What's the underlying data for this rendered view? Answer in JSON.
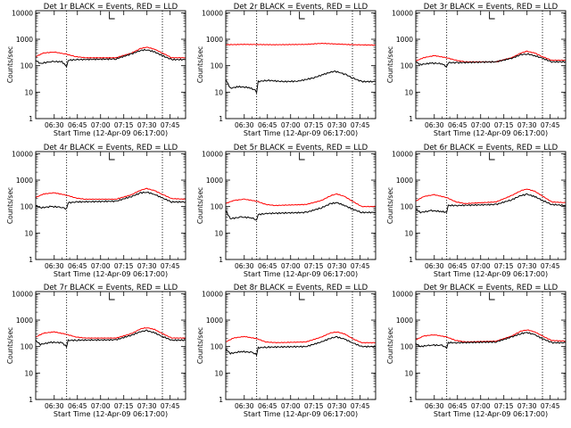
{
  "chart_data": [
    {
      "type": "line",
      "title": "Det 1r BLACK = Events, RED = LLD",
      "xlabel": "Start Time (12-Apr-09 06:17:00)",
      "ylabel": "Counts/sec",
      "yscale": "log",
      "ylim": [
        1,
        12000
      ],
      "xlim": [
        378,
        475
      ],
      "x_tick_labels": [
        "06:30",
        "06:45",
        "07:00",
        "07:15",
        "07:30",
        "07:45"
      ],
      "y_tick_labels": [
        "1",
        "10",
        "100",
        "1000",
        "10000"
      ],
      "vlines": [
        398,
        460
      ],
      "series": [
        {
          "color": "#ff0000",
          "x": [
            378,
            383,
            390,
            398,
            404,
            410,
            430,
            440,
            446,
            450,
            455,
            460,
            466,
            475
          ],
          "y": [
            220,
            300,
            330,
            270,
            220,
            200,
            200,
            300,
            450,
            500,
            420,
            300,
            200,
            200
          ]
        },
        {
          "color": "#000000",
          "x": [
            378,
            381,
            388,
            395,
            398,
            399,
            405,
            430,
            440,
            446,
            450,
            455,
            460,
            466,
            475
          ],
          "y": [
            160,
            120,
            145,
            140,
            95,
            160,
            170,
            180,
            280,
            380,
            400,
            330,
            240,
            170,
            170
          ]
        }
      ]
    },
    {
      "type": "line",
      "title": "Det 2r BLACK = Events, RED = LLD",
      "xlabel": "Start Time (12-Apr-09 06:17:00)",
      "ylabel": "Counts/sec",
      "yscale": "log",
      "ylim": [
        1,
        12000
      ],
      "xlim": [
        378,
        475
      ],
      "x_tick_labels": [
        "06:30",
        "06:45",
        "07:00",
        "07:15",
        "07:30",
        "07:45"
      ],
      "y_tick_labels": [
        "1",
        "10",
        "100",
        "1000",
        "10000"
      ],
      "vlines": [
        398,
        460
      ],
      "series": [
        {
          "color": "#ff0000",
          "x": [
            378,
            390,
            410,
            430,
            440,
            450,
            460,
            475
          ],
          "y": [
            620,
            640,
            620,
            640,
            700,
            660,
            620,
            600
          ]
        },
        {
          "color": "#000000",
          "x": [
            378,
            381,
            386,
            393,
            397,
            398,
            399,
            405,
            415,
            425,
            435,
            442,
            448,
            452,
            456,
            460,
            466,
            475
          ],
          "y": [
            30,
            14,
            16,
            15,
            12,
            10,
            25,
            28,
            25,
            26,
            35,
            48,
            62,
            55,
            45,
            35,
            25,
            25
          ]
        }
      ]
    },
    {
      "type": "line",
      "title": "Det 3r BLACK = Events, RED = LLD",
      "xlabel": "Start Time (12-Apr-09 06:17:00)",
      "ylabel": "Counts/sec",
      "yscale": "log",
      "ylim": [
        1,
        12000
      ],
      "xlim": [
        378,
        475
      ],
      "x_tick_labels": [
        "06:30",
        "06:45",
        "07:00",
        "07:15",
        "07:30",
        "07:45"
      ],
      "y_tick_labels": [
        "1",
        "10",
        "100",
        "1000",
        "10000"
      ],
      "vlines": [
        398,
        460
      ],
      "series": [
        {
          "color": "#ff0000",
          "x": [
            378,
            383,
            390,
            398,
            404,
            410,
            430,
            440,
            446,
            450,
            455,
            460,
            466,
            475
          ],
          "y": [
            150,
            200,
            240,
            200,
            160,
            140,
            140,
            200,
            300,
            350,
            300,
            220,
            160,
            160
          ]
        },
        {
          "color": "#000000",
          "x": [
            378,
            381,
            388,
            395,
            398,
            399,
            405,
            430,
            440,
            446,
            450,
            455,
            460,
            466,
            475
          ],
          "y": [
            140,
            110,
            125,
            120,
            90,
            130,
            130,
            140,
            190,
            260,
            280,
            240,
            190,
            140,
            140
          ]
        }
      ]
    },
    {
      "type": "line",
      "title": "Det 4r BLACK = Events, RED = LLD",
      "xlabel": "Start Time (12-Apr-09 06:17:00)",
      "ylabel": "Counts/sec",
      "yscale": "log",
      "ylim": [
        1,
        12000
      ],
      "xlim": [
        378,
        475
      ],
      "x_tick_labels": [
        "06:30",
        "06:45",
        "07:00",
        "07:15",
        "07:30",
        "07:45"
      ],
      "y_tick_labels": [
        "1",
        "10",
        "100",
        "1000",
        "10000"
      ],
      "vlines": [
        398,
        460
      ],
      "series": [
        {
          "color": "#ff0000",
          "x": [
            378,
            383,
            390,
            398,
            404,
            410,
            430,
            440,
            446,
            450,
            455,
            460,
            466,
            475
          ],
          "y": [
            220,
            300,
            330,
            270,
            210,
            190,
            190,
            280,
            420,
            480,
            400,
            290,
            200,
            190
          ]
        },
        {
          "color": "#000000",
          "x": [
            378,
            381,
            388,
            395,
            398,
            399,
            405,
            430,
            440,
            446,
            450,
            455,
            460,
            466,
            475
          ],
          "y": [
            110,
            90,
            100,
            95,
            80,
            140,
            150,
            160,
            240,
            330,
            350,
            290,
            210,
            150,
            150
          ]
        }
      ]
    },
    {
      "type": "line",
      "title": "Det 5r BLACK = Events, RED = LLD",
      "xlabel": "Start Time (12-Apr-09 06:17:00)",
      "ylabel": "Counts/sec",
      "yscale": "log",
      "ylim": [
        1,
        12000
      ],
      "xlim": [
        378,
        475
      ],
      "x_tick_labels": [
        "06:30",
        "06:45",
        "07:00",
        "07:15",
        "07:30",
        "07:45"
      ],
      "y_tick_labels": [
        "1",
        "10",
        "100",
        "1000",
        "10000"
      ],
      "vlines": [
        398,
        460
      ],
      "series": [
        {
          "color": "#ff0000",
          "x": [
            378,
            383,
            390,
            398,
            404,
            410,
            430,
            440,
            446,
            450,
            455,
            460,
            466,
            475
          ],
          "y": [
            130,
            170,
            190,
            160,
            120,
            110,
            120,
            170,
            260,
            300,
            240,
            160,
            100,
            100
          ]
        },
        {
          "color": "#000000",
          "x": [
            378,
            381,
            388,
            395,
            398,
            399,
            405,
            430,
            440,
            446,
            450,
            455,
            460,
            466,
            475
          ],
          "y": [
            70,
            35,
            40,
            38,
            30,
            50,
            55,
            60,
            90,
            130,
            140,
            110,
            80,
            60,
            60
          ]
        }
      ]
    },
    {
      "type": "line",
      "title": "Det 6r BLACK = Events, RED = LLD",
      "xlabel": "Start Time (12-Apr-09 06:17:00)",
      "ylabel": "Counts/sec",
      "yscale": "log",
      "ylim": [
        1,
        12000
      ],
      "xlim": [
        378,
        475
      ],
      "x_tick_labels": [
        "06:30",
        "06:45",
        "07:00",
        "07:15",
        "07:30",
        "07:45"
      ],
      "y_tick_labels": [
        "1",
        "10",
        "100",
        "1000",
        "10000"
      ],
      "vlines": [
        398,
        460
      ],
      "series": [
        {
          "color": "#ff0000",
          "x": [
            378,
            383,
            390,
            398,
            404,
            410,
            430,
            440,
            446,
            450,
            455,
            460,
            466,
            475
          ],
          "y": [
            160,
            240,
            280,
            220,
            150,
            130,
            150,
            260,
            400,
            460,
            380,
            250,
            150,
            140
          ]
        },
        {
          "color": "#000000",
          "x": [
            378,
            381,
            388,
            395,
            398,
            399,
            405,
            430,
            440,
            446,
            450,
            455,
            460,
            466,
            475
          ],
          "y": [
            80,
            60,
            70,
            65,
            60,
            110,
            110,
            120,
            180,
            260,
            290,
            240,
            170,
            120,
            110
          ]
        }
      ]
    },
    {
      "type": "line",
      "title": "Det 7r BLACK = Events, RED = LLD",
      "xlabel": "Start Time (12-Apr-09 06:17:00)",
      "ylabel": "Counts/sec",
      "yscale": "log",
      "ylim": [
        1,
        12000
      ],
      "xlim": [
        378,
        475
      ],
      "x_tick_labels": [
        "06:30",
        "06:45",
        "07:00",
        "07:15",
        "07:30",
        "07:45"
      ],
      "y_tick_labels": [
        "1",
        "10",
        "100",
        "1000",
        "10000"
      ],
      "vlines": [
        398,
        460
      ],
      "series": [
        {
          "color": "#ff0000",
          "x": [
            378,
            383,
            390,
            398,
            404,
            410,
            430,
            440,
            446,
            450,
            455,
            460,
            466,
            475
          ],
          "y": [
            230,
            320,
            360,
            290,
            230,
            210,
            210,
            310,
            470,
            520,
            440,
            310,
            210,
            210
          ]
        },
        {
          "color": "#000000",
          "x": [
            378,
            381,
            388,
            395,
            398,
            399,
            405,
            430,
            440,
            446,
            450,
            455,
            460,
            466,
            475
          ],
          "y": [
            170,
            120,
            145,
            140,
            100,
            170,
            175,
            180,
            270,
            370,
            400,
            330,
            240,
            175,
            175
          ]
        }
      ]
    },
    {
      "type": "line",
      "title": "Det 8r BLACK = Events, RED = LLD",
      "xlabel": "Start Time (12-Apr-09 06:17:00)",
      "ylabel": "Counts/sec",
      "yscale": "log",
      "ylim": [
        1,
        12000
      ],
      "xlim": [
        378,
        475
      ],
      "x_tick_labels": [
        "06:30",
        "06:45",
        "07:00",
        "07:15",
        "07:30",
        "07:45"
      ],
      "y_tick_labels": [
        "1",
        "10",
        "100",
        "1000",
        "10000"
      ],
      "vlines": [
        398,
        460
      ],
      "series": [
        {
          "color": "#ff0000",
          "x": [
            378,
            383,
            390,
            398,
            404,
            410,
            430,
            440,
            446,
            450,
            455,
            460,
            466,
            475
          ],
          "y": [
            150,
            210,
            240,
            200,
            150,
            140,
            150,
            230,
            330,
            360,
            300,
            200,
            140,
            140
          ]
        },
        {
          "color": "#000000",
          "x": [
            378,
            381,
            388,
            395,
            398,
            399,
            405,
            430,
            440,
            446,
            450,
            455,
            460,
            466,
            475
          ],
          "y": [
            80,
            55,
            65,
            60,
            50,
            90,
            95,
            100,
            150,
            210,
            230,
            190,
            140,
            100,
            100
          ]
        }
      ]
    },
    {
      "type": "line",
      "title": "Det 9r BLACK = Events, RED = LLD",
      "xlabel": "Start Time (12-Apr-09 06:17:00)",
      "ylabel": "Counts/sec",
      "yscale": "log",
      "ylim": [
        1,
        12000
      ],
      "xlim": [
        378,
        475
      ],
      "x_tick_labels": [
        "06:30",
        "06:45",
        "07:00",
        "07:15",
        "07:30",
        "07:45"
      ],
      "y_tick_labels": [
        "1",
        "10",
        "100",
        "1000",
        "10000"
      ],
      "vlines": [
        398,
        460
      ],
      "series": [
        {
          "color": "#ff0000",
          "x": [
            378,
            383,
            390,
            398,
            404,
            410,
            430,
            440,
            446,
            450,
            455,
            460,
            466,
            475
          ],
          "y": [
            180,
            250,
            280,
            230,
            170,
            150,
            160,
            250,
            380,
            430,
            360,
            250,
            170,
            160
          ]
        },
        {
          "color": "#000000",
          "x": [
            378,
            381,
            388,
            395,
            398,
            399,
            405,
            430,
            440,
            446,
            450,
            455,
            460,
            466,
            475
          ],
          "y": [
            130,
            100,
            115,
            110,
            90,
            140,
            140,
            150,
            230,
            310,
            340,
            280,
            200,
            140,
            140
          ]
        }
      ]
    }
  ]
}
